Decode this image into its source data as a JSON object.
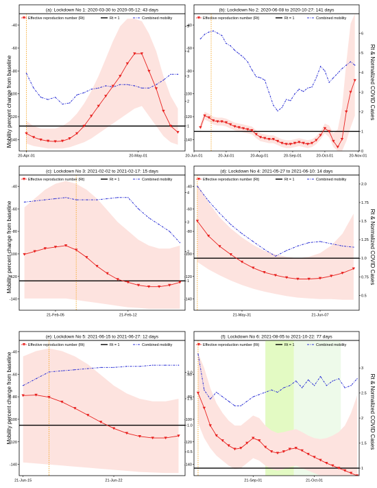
{
  "figure": {
    "ylabel_left": "Mobility percent change from baseline",
    "ylabel_right": "Rt & Normalized COVID Cases"
  },
  "legend": {
    "rt_label": "Effective reproduction number (Rt)",
    "rt1_label": "Rt = 1",
    "mobility_label": "Combined mobility"
  },
  "colors": {
    "rt": "#e8201e",
    "band": "#fde3df",
    "mobility": "#2a2fd4",
    "threshold": "#000000",
    "lockdown_marker": "#f5a623",
    "shade_green_dark": "#e3fac3",
    "shade_green_light": "#eefaea"
  },
  "chart_data": [
    {
      "type": "line",
      "title": "(a): Lockdown No 1: 2020-03-30 to 2020-05-12: 43 days",
      "x_ticks": [
        "20-Apr-01",
        "20-May-01"
      ],
      "left_ylim": [
        -150,
        -30
      ],
      "left_ticks": [
        -40,
        -60,
        -80,
        -100,
        -120,
        -140
      ],
      "right_ylim": [
        0,
        5.5
      ],
      "right_ticks": [
        1,
        2,
        3,
        4,
        5
      ],
      "series": [
        {
          "name": "Effective reproduction number (Rt)",
          "axis": "right",
          "x": [
            0,
            2,
            4,
            6,
            8,
            10,
            12,
            14,
            16,
            18,
            20,
            22,
            24,
            26,
            28,
            30,
            32,
            34,
            36,
            38,
            40,
            42
          ],
          "values": [
            0.7,
            0.55,
            0.45,
            0.4,
            0.38,
            0.4,
            0.5,
            0.7,
            1.0,
            1.4,
            1.8,
            2.2,
            2.6,
            3.0,
            3.5,
            3.9,
            3.9,
            3.2,
            2.5,
            1.6,
            1.0,
            0.75
          ]
        },
        {
          "name": "Combined mobility",
          "axis": "left",
          "x": [
            0,
            2,
            4,
            6,
            8,
            10,
            12,
            14,
            16,
            18,
            20,
            22,
            24,
            26,
            28,
            30,
            32,
            34,
            36,
            38,
            40,
            42
          ],
          "values": [
            -82,
            -95,
            -103,
            -105,
            -103,
            -109,
            -108,
            -101,
            -99,
            -96,
            -95,
            -93,
            -94,
            -92,
            -92,
            -93,
            -95,
            -95,
            -92,
            -88,
            -83,
            -83
          ]
        }
      ],
      "band_upper": [
        1.2,
        1.0,
        0.9,
        0.9,
        0.9,
        1.0,
        1.2,
        1.5,
        1.9,
        2.4,
        3.0,
        3.7,
        4.4,
        5.0,
        5.3,
        5.3,
        5.2,
        4.7,
        4.0,
        3.0,
        2.2,
        1.7
      ],
      "band_lower": [
        0.3,
        0.2,
        0.15,
        0.1,
        0.1,
        0.1,
        0.15,
        0.25,
        0.35,
        0.5,
        0.7,
        0.9,
        1.1,
        1.3,
        1.5,
        1.7,
        1.8,
        1.4,
        1.0,
        0.6,
        0.35,
        0.25
      ],
      "rt_threshold": 1
    },
    {
      "type": "line",
      "title": "(b): Lockdown No 2: 2020-06-08 to 2020-10-27: 141 days",
      "x_ticks": [
        "20-Jun-01",
        "20-Jul-01",
        "20-Aug-01",
        "20-Sep-01",
        "20-Oct-01",
        "20-Nov-01"
      ],
      "left_ylim": [
        -150,
        -30
      ],
      "left_ticks": [
        -40,
        -60,
        -80,
        -100,
        -120,
        -140
      ],
      "right_ylim": [
        0,
        7
      ],
      "right_ticks": [
        0,
        1,
        2,
        3,
        4,
        5,
        6
      ],
      "series": [
        {
          "name": "Effective reproduction number (Rt)",
          "axis": "right",
          "x": [
            6,
            10,
            14,
            18,
            22,
            26,
            30,
            34,
            38,
            42,
            46,
            50,
            54,
            58,
            62,
            66,
            70,
            74,
            78,
            82,
            86,
            90,
            94,
            98,
            102,
            106,
            110,
            114,
            118,
            122,
            126,
            130,
            134,
            138,
            142,
            146,
            150
          ],
          "values": [
            1.2,
            1.8,
            1.7,
            1.55,
            1.5,
            1.5,
            1.45,
            1.35,
            1.25,
            1.2,
            1.15,
            1.1,
            1.05,
            0.85,
            0.7,
            0.65,
            0.6,
            0.6,
            0.5,
            0.4,
            0.35,
            0.35,
            0.4,
            0.45,
            0.4,
            0.35,
            0.4,
            0.55,
            0.8,
            1.15,
            1.0,
            0.5,
            0.2,
            0.6,
            2.0,
            3.0,
            3.6
          ]
        },
        {
          "name": "Combined mobility",
          "axis": "left",
          "x": [
            6,
            10,
            14,
            18,
            22,
            26,
            30,
            34,
            38,
            42,
            46,
            50,
            54,
            58,
            62,
            66,
            70,
            74,
            78,
            82,
            86,
            90,
            94,
            98,
            102,
            106,
            110,
            114,
            118,
            122,
            126,
            130,
            134,
            138,
            142,
            146,
            150
          ],
          "values": [
            -52,
            -48,
            -46,
            -45,
            -47,
            -49,
            -56,
            -58,
            -62,
            -65,
            -68,
            -72,
            -79,
            -85,
            -86,
            -88,
            -99,
            -110,
            -115,
            -112,
            -105,
            -106,
            -100,
            -96,
            -98,
            -95,
            -94,
            -86,
            -76,
            -80,
            -90,
            -86,
            -82,
            -78,
            -75,
            -72,
            -75
          ]
        }
      ],
      "band_upper": [
        1.4,
        2.0,
        1.9,
        1.75,
        1.7,
        1.7,
        1.65,
        1.55,
        1.45,
        1.4,
        1.35,
        1.3,
        1.25,
        1.05,
        0.9,
        0.85,
        0.8,
        0.8,
        0.7,
        0.6,
        0.55,
        0.55,
        0.6,
        0.65,
        0.6,
        0.55,
        0.6,
        0.75,
        1.0,
        1.4,
        1.3,
        0.9,
        1.1,
        2.2,
        4.5,
        6.5,
        7.0
      ],
      "band_lower": [
        1.0,
        1.6,
        1.5,
        1.35,
        1.3,
        1.3,
        1.25,
        1.15,
        1.05,
        1.0,
        0.95,
        0.9,
        0.85,
        0.65,
        0.5,
        0.45,
        0.4,
        0.4,
        0.3,
        0.2,
        0.15,
        0.15,
        0.2,
        0.25,
        0.2,
        0.15,
        0.2,
        0.35,
        0.6,
        0.9,
        0.7,
        0.2,
        0.0,
        0.0,
        0.5,
        1.2,
        1.8
      ],
      "rt_threshold": 1
    },
    {
      "type": "line",
      "title": "(c): Lockdown No 3: 2021-02-02 to 2021-02-17: 15 days",
      "x_ticks": [
        "21-Feb-05",
        "21-Feb-12"
      ],
      "left_ylim": [
        -150,
        -30
      ],
      "left_ticks": [
        -40,
        -60,
        -80,
        -100,
        -120,
        -140
      ],
      "right_ylim": [
        0,
        4.6
      ],
      "right_ticks": [
        1,
        2,
        3,
        4
      ],
      "series": [
        {
          "name": "Effective reproduction number (Rt)",
          "axis": "right",
          "x": [
            0,
            1,
            2,
            3,
            4,
            5,
            6,
            7,
            8,
            9,
            10,
            11,
            12,
            13,
            14,
            15
          ],
          "values": [
            1.9,
            2.0,
            2.1,
            2.15,
            2.2,
            2.05,
            1.8,
            1.5,
            1.25,
            1.05,
            0.95,
            0.85,
            0.8,
            0.8,
            0.85,
            0.95
          ]
        },
        {
          "name": "Combined mobility",
          "axis": "left",
          "x": [
            0,
            1,
            2,
            3,
            4,
            5,
            6,
            7,
            8,
            9,
            10,
            11,
            12,
            13,
            14,
            15
          ],
          "values": [
            -54,
            -53,
            -52,
            -51,
            -50,
            -52,
            -52,
            -52,
            -51,
            -50,
            -50,
            -60,
            -68,
            -74,
            -80,
            -90
          ]
        }
      ],
      "band_upper": [
        3.5,
        3.8,
        4.1,
        4.3,
        4.4,
        4.3,
        4.1,
        3.8,
        3.4,
        3.0,
        2.7,
        2.4,
        2.2,
        2.1,
        2.1,
        2.2
      ],
      "band_lower": [
        0.4,
        0.4,
        0.4,
        0.4,
        0.4,
        0.35,
        0.3,
        0.25,
        0.2,
        0.15,
        0.1,
        0.08,
        0.05,
        0.05,
        0.05,
        0.05
      ],
      "rt_threshold": 1
    },
    {
      "type": "line",
      "title": "(d): Lockdown No 4: 2021-05-27 to 2021-06-10: 14 days",
      "x_ticks": [
        "21-May-31",
        "21-Jun-07"
      ],
      "left_ylim": [
        -150,
        -30
      ],
      "left_ticks": [
        -40,
        -60,
        -80,
        -100,
        -120,
        -140
      ],
      "right_ylim": [
        0.3,
        2.12
      ],
      "right_ticks": [
        0.5,
        0.75,
        1.0,
        1.25,
        1.5,
        1.75,
        2.0
      ],
      "series": [
        {
          "name": "Effective reproduction number (Rt)",
          "axis": "right",
          "x": [
            0,
            1,
            2,
            3,
            4,
            5,
            6,
            7,
            8,
            9,
            10,
            11,
            12,
            13,
            14
          ],
          "values": [
            1.5,
            1.3,
            1.16,
            1.05,
            0.95,
            0.87,
            0.81,
            0.77,
            0.74,
            0.72,
            0.72,
            0.73,
            0.76,
            0.8,
            0.86
          ]
        },
        {
          "name": "Combined mobility",
          "axis": "left",
          "x": [
            0,
            1,
            2,
            3,
            4,
            5,
            6,
            7,
            8,
            9,
            10,
            11,
            12,
            13,
            14
          ],
          "values": [
            -40,
            -53,
            -64,
            -74,
            -82,
            -89,
            -96,
            -102,
            -97,
            -93,
            -90,
            -89,
            -91,
            -93,
            -94
          ]
        }
      ],
      "band_upper": [
        2.0,
        1.75,
        1.55,
        1.4,
        1.28,
        1.18,
        1.1,
        1.05,
        1.02,
        1.0,
        1.02,
        1.07,
        1.17,
        1.33,
        1.6
      ],
      "band_lower": [
        0.95,
        0.85,
        0.77,
        0.7,
        0.64,
        0.59,
        0.55,
        0.52,
        0.49,
        0.47,
        0.46,
        0.45,
        0.45,
        0.44,
        0.44
      ],
      "rt_threshold": 1
    },
    {
      "type": "line",
      "title": "(e): Lockdown No 5: 2021-06-15 to 2021-06-27: 12 days",
      "x_ticks": [
        "21-Jun-15",
        "21-Jun-22"
      ],
      "left_ylim": [
        -150,
        -30
      ],
      "left_ticks": [
        -40,
        -60,
        -80,
        -100,
        -120,
        -140
      ],
      "right_ylim": [
        0.05,
        2.6
      ],
      "right_ticks": [
        0.5,
        1.0,
        1.5,
        2.0
      ],
      "series": [
        {
          "name": "Effective reproduction number (Rt)",
          "axis": "right",
          "x": [
            0,
            1,
            2,
            3,
            4,
            5,
            6,
            7,
            8,
            9,
            10,
            11,
            12
          ],
          "values": [
            1.56,
            1.57,
            1.53,
            1.44,
            1.32,
            1.19,
            1.06,
            0.94,
            0.85,
            0.79,
            0.76,
            0.76,
            0.8
          ]
        },
        {
          "name": "Combined mobility",
          "axis": "left",
          "x": [
            0,
            1,
            2,
            3,
            4,
            5,
            6,
            7,
            8,
            9,
            10,
            11,
            12
          ],
          "values": [
            -70,
            -64,
            -58,
            -57,
            -56,
            -55,
            -54,
            -54,
            -53,
            -53,
            -52,
            -52,
            -52
          ]
        }
      ],
      "band_upper": [
        2.3,
        2.4,
        2.45,
        2.4,
        2.3,
        2.15,
        1.95,
        1.75,
        1.6,
        1.5,
        1.45,
        1.45,
        1.5
      ],
      "band_lower": [
        0.3,
        0.28,
        0.26,
        0.24,
        0.22,
        0.2,
        0.18,
        0.16,
        0.14,
        0.12,
        0.11,
        0.1,
        0.1
      ],
      "rt_threshold": 1
    },
    {
      "type": "line",
      "title": "(f): Lockdown No 6: 2021-08-05 to 2021-10-22: 77 days",
      "x_ticks": [
        "21-Sep-01",
        "21-Oct-01"
      ],
      "left_ylim": [
        -150,
        -30
      ],
      "left_ticks": [
        -60,
        -80,
        -100,
        -120,
        -140
      ],
      "right_ylim": [
        0.85,
        3.55
      ],
      "right_ticks": [
        1.0,
        1.5,
        2.0,
        2.5,
        3.0,
        3.5
      ],
      "series": [
        {
          "name": "Effective reproduction number (Rt)",
          "axis": "right",
          "x": [
            0,
            3,
            6,
            9,
            12,
            15,
            18,
            21,
            24,
            27,
            30,
            33,
            36,
            39,
            42,
            45,
            48,
            51,
            54,
            57,
            60,
            63,
            66,
            69,
            72,
            75,
            78
          ],
          "values": [
            2.5,
            2.2,
            1.85,
            1.65,
            1.55,
            1.45,
            1.38,
            1.4,
            1.5,
            1.6,
            1.55,
            1.42,
            1.33,
            1.3,
            1.33,
            1.38,
            1.4,
            1.35,
            1.28,
            1.22,
            1.16,
            1.1,
            1.05,
            1.0,
            0.95,
            0.9,
            0.85
          ]
        },
        {
          "name": "Combined mobility",
          "axis": "left",
          "x": [
            0,
            3,
            6,
            9,
            12,
            15,
            18,
            21,
            24,
            27,
            30,
            33,
            36,
            39,
            42,
            45,
            48,
            51,
            54,
            57,
            60,
            63,
            66,
            69,
            72,
            75,
            78
          ],
          "values": [
            -42,
            -74,
            -82,
            -76,
            -80,
            -84,
            -88,
            -88,
            -84,
            -80,
            -78,
            -76,
            -74,
            -76,
            -72,
            -70,
            -66,
            -72,
            -65,
            -70,
            -62,
            -70,
            -66,
            -64,
            -72,
            -70,
            -64
          ]
        }
      ],
      "band_upper": [
        3.3,
        3.0,
        2.6,
        2.3,
        2.1,
        1.95,
        1.85,
        1.85,
        1.95,
        2.05,
        2.0,
        1.85,
        1.75,
        1.7,
        1.72,
        1.75,
        1.78,
        1.72,
        1.65,
        1.6,
        1.58,
        1.6,
        1.65,
        1.72,
        1.85,
        2.1,
        2.45
      ],
      "band_lower": [
        1.9,
        1.6,
        1.4,
        1.25,
        1.15,
        1.05,
        0.98,
        1.0,
        1.1,
        1.2,
        1.15,
        1.05,
        0.98,
        0.95,
        0.98,
        1.02,
        1.05,
        1.0,
        0.95,
        0.9,
        0.85,
        0.8,
        0.75,
        0.7,
        0.65,
        0.6,
        0.55
      ],
      "rt_threshold": 1
    }
  ]
}
